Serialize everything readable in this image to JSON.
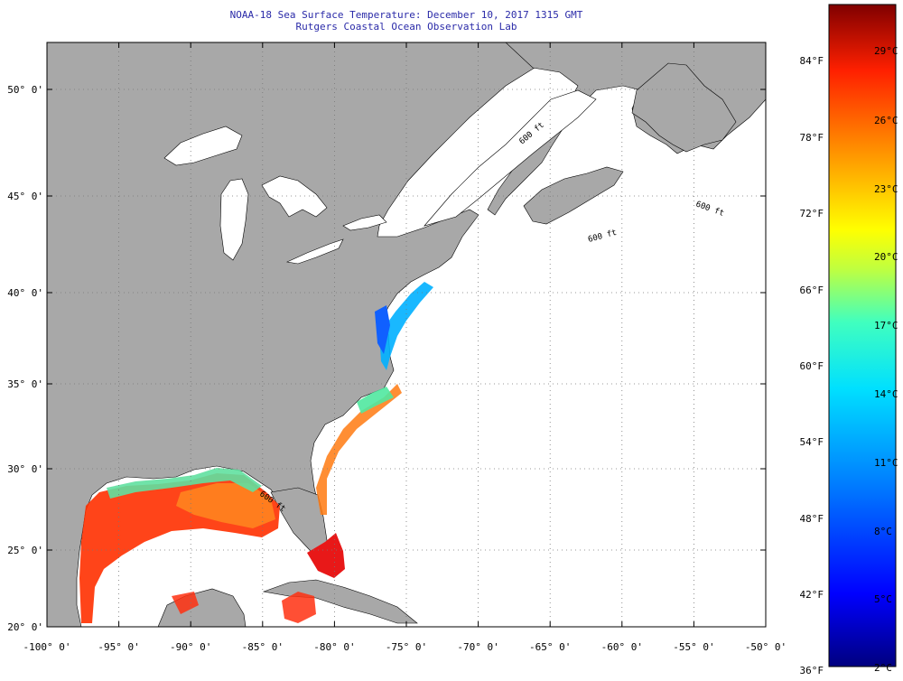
{
  "title": {
    "line1": "NOAA-18 Sea Surface Temperature:  December 10, 2017 1315 GMT",
    "line2": "Rutgers Coastal Ocean Observation Lab"
  },
  "map": {
    "lon_range": [
      -100,
      -50
    ],
    "lat_range": [
      20,
      52
    ],
    "gridlines": "dotted",
    "lat_ticks": [
      {
        "value": 20,
        "label": "20° 0'"
      },
      {
        "value": 25,
        "label": "25° 0'"
      },
      {
        "value": 30,
        "label": "30° 0'"
      },
      {
        "value": 35,
        "label": "35° 0'"
      },
      {
        "value": 40,
        "label": "40° 0'"
      },
      {
        "value": 45,
        "label": "45° 0'"
      },
      {
        "value": 50,
        "label": "50° 0'"
      }
    ],
    "lon_ticks": [
      {
        "value": -100,
        "label": "-100° 0'"
      },
      {
        "value": -95,
        "label": "-95° 0'"
      },
      {
        "value": -90,
        "label": "-90° 0'"
      },
      {
        "value": -85,
        "label": "-85° 0'"
      },
      {
        "value": -80,
        "label": "-80° 0'"
      },
      {
        "value": -75,
        "label": "-75° 0'"
      },
      {
        "value": -70,
        "label": "-70° 0'"
      },
      {
        "value": -65,
        "label": "-65° 0'"
      },
      {
        "value": -60,
        "label": "-60° 0'"
      },
      {
        "value": -55,
        "label": "-55° 0'"
      },
      {
        "value": -50,
        "label": "-50° 0'"
      }
    ],
    "contour_label": "600 ft",
    "colors": {
      "land": "#a8a8a8",
      "water_no_data": "#ffffff",
      "grid": "#888888"
    }
  },
  "colorbar": {
    "fahrenheit_labels": [
      "84°F",
      "78°F",
      "72°F",
      "66°F",
      "60°F",
      "54°F",
      "48°F",
      "42°F",
      "36°F"
    ],
    "celsius_labels": [
      "29°C",
      "26°C",
      "23°C",
      "20°C",
      "17°C",
      "14°C",
      "11°C",
      "8°C",
      "5°C",
      "2°C"
    ],
    "colormap": [
      "#00007f",
      "#0000ff",
      "#0080ff",
      "#00e0ff",
      "#40ffbf",
      "#bfff40",
      "#ffff00",
      "#ff9000",
      "#ff2000",
      "#800000"
    ]
  }
}
